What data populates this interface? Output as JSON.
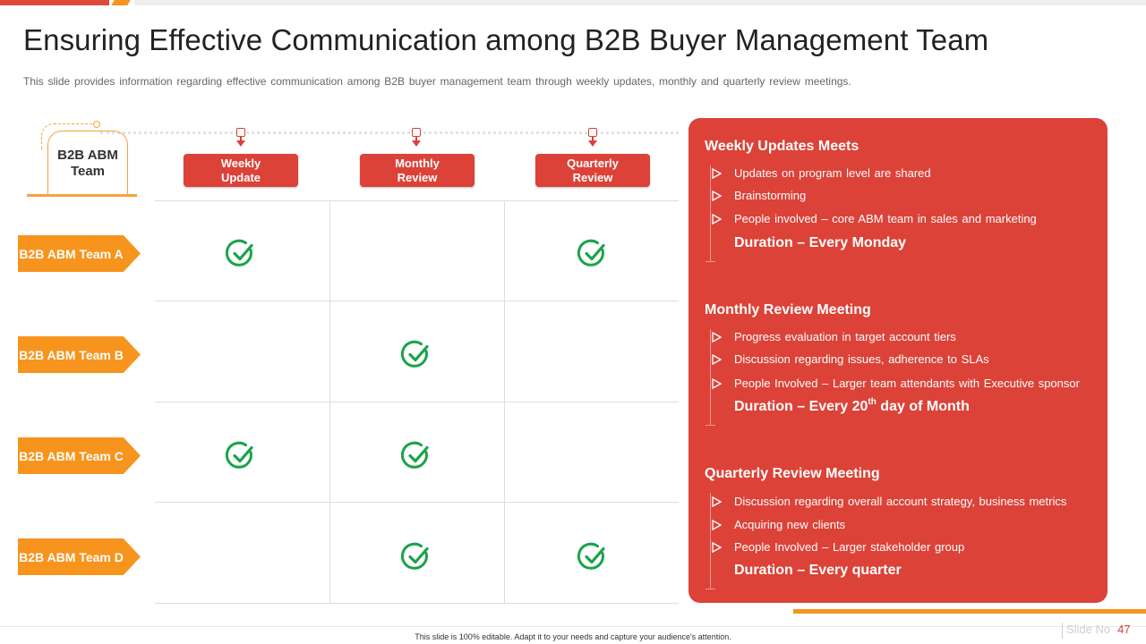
{
  "title": "Ensuring Effective Communication among B2B Buyer Management Team",
  "subtitle": "This slide provides information regarding effective communication among B2B buyer management team through weekly updates, monthly and quarterly review meetings.",
  "matrix": {
    "team_header": "B2B ABM Team",
    "columns": [
      "Weekly Update",
      "Monthly Review",
      "Quarterly Review"
    ],
    "rows": [
      {
        "label": "B2B ABM Team A",
        "checks": [
          true,
          false,
          true
        ]
      },
      {
        "label": "B2B ABM Team B",
        "checks": [
          false,
          true,
          false
        ]
      },
      {
        "label": "B2B ABM Team C",
        "checks": [
          true,
          true,
          false
        ]
      },
      {
        "label": "B2B ABM Team D",
        "checks": [
          false,
          true,
          true
        ]
      }
    ],
    "check_icon": "check-circle-icon",
    "check_color": "#1aa34a"
  },
  "panel": {
    "sections": [
      {
        "title": "Weekly Updates Meets",
        "bullets": [
          "Updates on program level are shared",
          "Brainstorming",
          "People involved  – core ABM team in sales and marketing"
        ],
        "duration": "Duration – Every Monday"
      },
      {
        "title": "Monthly Review Meeting",
        "bullets": [
          "Progress evaluation  in target account tiers",
          "Discussion regarding  issues, adherence to SLAs",
          "People Involved  – Larger team attendants with Executive sponsor"
        ],
        "duration_pre": "Duration – Every 20",
        "duration_sup": "th",
        "duration_post": " day of Month"
      },
      {
        "title": "Quarterly Review Meeting",
        "bullets": [
          "Discussion regarding  overall account strategy, business  metrics",
          "Acquiring new clients",
          "People Involved  – Larger stakeholder group"
        ],
        "duration": "Duration – Every quarter"
      }
    ]
  },
  "footer": {
    "note": "This slide is 100% editable. Adapt it to your needs and capture your audience's attention.",
    "slide_label": "Slide No",
    "slide_number": "47"
  },
  "colors": {
    "red": "#dc4238",
    "orange": "#f7941d",
    "green": "#1aa34a"
  }
}
